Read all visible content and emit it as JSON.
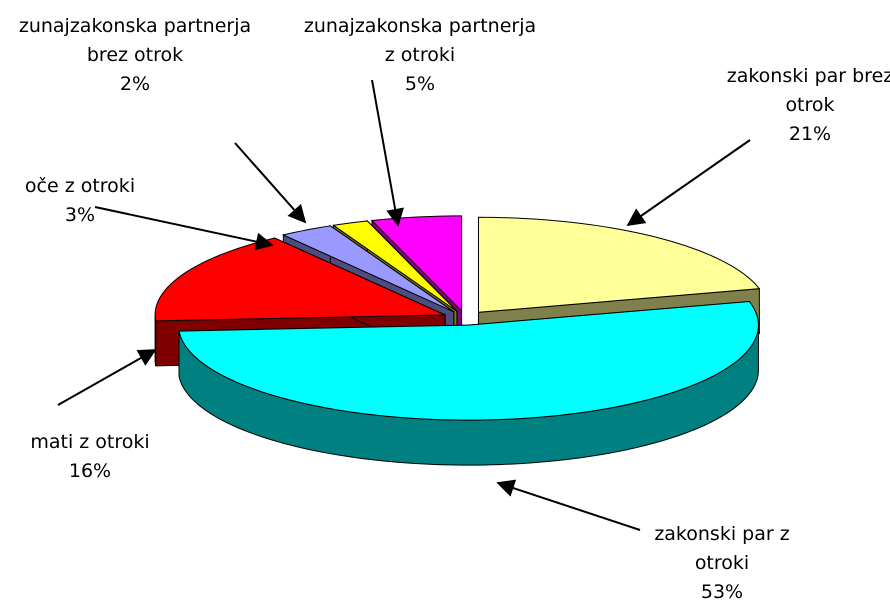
{
  "chart_data": {
    "type": "pie3d",
    "categories": [
      "zakonski par brez otrok",
      "zakonski par z otroki",
      "mati z otroki",
      "oče z otroki",
      "zunajzakonska partnerja brez otrok",
      "zunajzakonska partnerja z otroki"
    ],
    "values": [
      21,
      53,
      16,
      3,
      2,
      5
    ],
    "value_labels": [
      "21%",
      "53%",
      "16%",
      "3%",
      "2%",
      "5%"
    ],
    "colors": [
      "#ffff99",
      "#00ffff",
      "#ff0000",
      "#9999ff",
      "#ffff00",
      "#ff00ff"
    ]
  }
}
